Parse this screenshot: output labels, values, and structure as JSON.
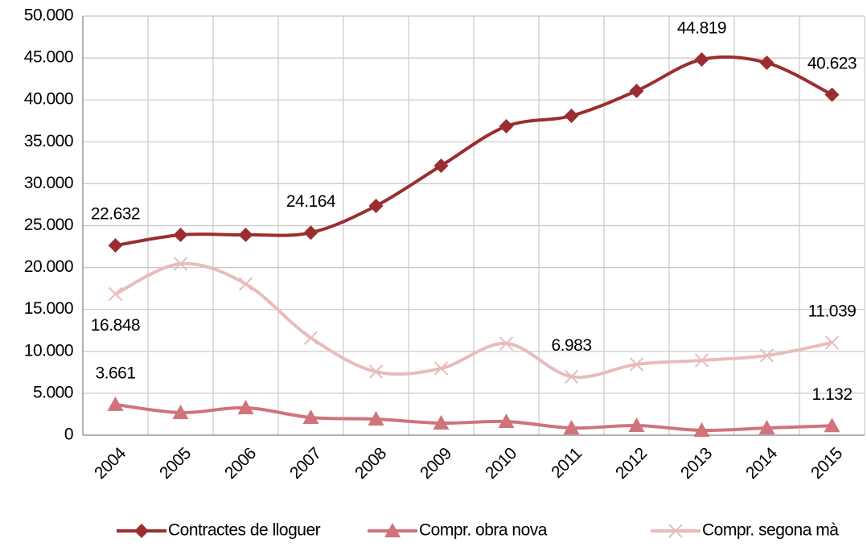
{
  "chart_data": {
    "type": "line",
    "categories": [
      "2004",
      "2005",
      "2006",
      "2007",
      "2008",
      "2009",
      "2010",
      "2011",
      "2012",
      "2013",
      "2014",
      "2015"
    ],
    "series": [
      {
        "name": "Contractes de lloguer",
        "color": "#9b2d30",
        "marker": "diamond",
        "values": [
          22632,
          23900,
          23900,
          24164,
          27350,
          32150,
          36850,
          38100,
          41080,
          44819,
          44430,
          40623
        ],
        "value_labels": [
          "22.632",
          null,
          null,
          "24.164",
          null,
          null,
          null,
          null,
          null,
          "44.819",
          null,
          "40.623"
        ]
      },
      {
        "name": "Compr. obra nova",
        "color": "#d0737a",
        "marker": "triangle",
        "values": [
          3661,
          2690,
          3260,
          2110,
          1920,
          1440,
          1630,
          860,
          1150,
          580,
          860,
          1132
        ],
        "value_labels": [
          "3.661",
          null,
          null,
          null,
          null,
          null,
          null,
          null,
          null,
          null,
          null,
          "1.132"
        ]
      },
      {
        "name": "Compr. segona mà",
        "color": "#e8bcbc",
        "marker": "cross",
        "values": [
          16848,
          20440,
          18040,
          11610,
          7580,
          7970,
          10940,
          6983,
          8450,
          8930,
          9500,
          11039
        ],
        "value_labels": [
          "16.848",
          null,
          null,
          null,
          null,
          null,
          null,
          "6.983",
          null,
          null,
          null,
          "11.039"
        ]
      }
    ],
    "ylim": [
      0,
      50000
    ],
    "yticks": [
      0,
      {
        "value": 5000,
        "label": "5.000"
      },
      {
        "value": 10000,
        "label": "10.000"
      },
      {
        "value": 15000,
        "label": "15.000"
      },
      {
        "value": 20000,
        "label": "20.000"
      },
      {
        "value": 25000,
        "label": "25.000"
      },
      {
        "value": 30000,
        "label": "30.000"
      },
      {
        "value": 35000,
        "label": "35.000"
      },
      {
        "value": 40000,
        "label": "40.000"
      },
      {
        "value": 45000,
        "label": "45.000"
      },
      {
        "value": 50000,
        "label": "50.000"
      }
    ],
    "grid": true,
    "smooth": true,
    "legend": "bottom"
  }
}
